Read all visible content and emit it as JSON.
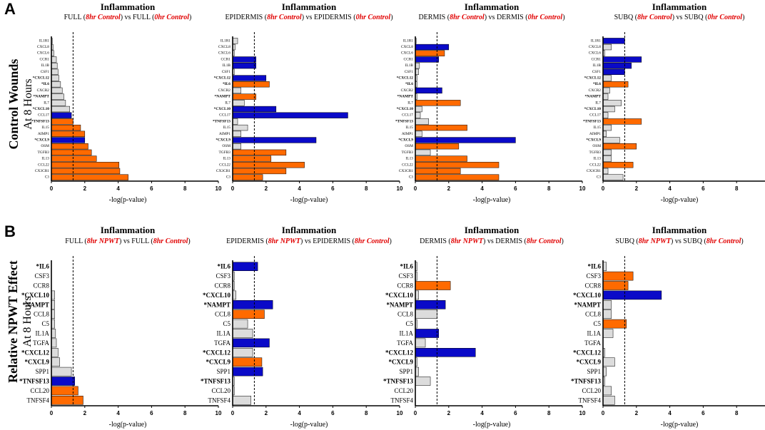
{
  "panels": [
    {
      "letter": "A",
      "row_label_1": "Control Wounds",
      "row_label_2": "At 8 Hours"
    },
    {
      "letter": "B",
      "row_label_1": "Relative NPWT Effect",
      "row_label_2": "At 8 Hours"
    }
  ],
  "colors": {
    "blue": "#0a0ac8",
    "orange": "#ff6a00",
    "grey": "#dcdcdc",
    "red": "#e10000"
  },
  "chart_data": [
    {
      "type": "bar",
      "orientation": "horizontal",
      "title": "Inflammation",
      "subtitle": [
        {
          "t": "FULL ("
        },
        {
          "t": "8hr Control",
          "red": true
        },
        {
          "t": ") vs FULL ("
        },
        {
          "t": "0hr Control",
          "red": true
        },
        {
          "t": ")"
        }
      ],
      "xlabel": "-log(p-value)",
      "xlim": [
        0,
        10
      ],
      "xticks": [
        0,
        2,
        4,
        6,
        8,
        10
      ],
      "threshold": 1.3,
      "categories": [
        "IL1R1",
        "CXCL8",
        "CXCL6",
        "CCR1",
        "IL1B",
        "CSF1",
        "*CXCL12",
        "*IL6",
        "CXCR2",
        "*NAMPT",
        "IL7",
        "*CXCL10",
        "CCL17",
        "*TNFSF13",
        "IL15",
        "AIMP1",
        "*CXCL9",
        "OSM",
        "TGFB3",
        "IL13",
        "CCL22",
        "CX3CR1",
        "C3"
      ],
      "values": [
        0.05,
        0.1,
        0.15,
        0.3,
        0.35,
        0.4,
        0.45,
        0.55,
        0.65,
        0.75,
        0.85,
        1.1,
        1.2,
        1.3,
        1.75,
        2.0,
        2.0,
        2.2,
        2.4,
        2.7,
        4.05,
        4.1,
        4.6
      ],
      "colors": [
        "g",
        "g",
        "g",
        "g",
        "g",
        "g",
        "g",
        "g",
        "g",
        "g",
        "g",
        "g",
        "b",
        "o",
        "o",
        "o",
        "b",
        "o",
        "o",
        "o",
        "o",
        "o",
        "o"
      ]
    },
    {
      "type": "bar",
      "orientation": "horizontal",
      "title": "Inflammation",
      "subtitle": [
        {
          "t": "EPIDERMIS ("
        },
        {
          "t": "8hr Control",
          "red": true
        },
        {
          "t": ") vs EPIDERMIS ("
        },
        {
          "t": "0hr Control",
          "red": true
        },
        {
          "t": ")"
        }
      ],
      "xlabel": "-log(p-value)",
      "xlim": [
        0,
        10
      ],
      "xticks": [
        0,
        2,
        4,
        6,
        8,
        10
      ],
      "threshold": 1.3,
      "categories": [
        "IL1R1",
        "CXCL8",
        "CXCL6",
        "CCR1",
        "IL1B",
        "CSF1",
        "*CXCL12",
        "*IL6",
        "CXCR2",
        "*NAMPT",
        "IL7",
        "*CXCL10",
        "CCL17",
        "*TNFSF13",
        "IL15",
        "AIMP1",
        "*CXCL9",
        "OSM",
        "TGFB3",
        "IL13",
        "CCL22",
        "CX3CR1",
        "C3"
      ],
      "values": [
        0.3,
        0.15,
        0.1,
        1.4,
        1.4,
        0.1,
        2.0,
        2.2,
        0.5,
        1.4,
        0.7,
        2.6,
        6.9,
        0.3,
        0.9,
        0.5,
        5.0,
        0.5,
        3.2,
        2.3,
        4.3,
        3.2,
        1.8
      ],
      "colors": [
        "g",
        "g",
        "g",
        "b",
        "b",
        "g",
        "b",
        "o",
        "g",
        "o",
        "g",
        "b",
        "b",
        "g",
        "g",
        "g",
        "b",
        "g",
        "o",
        "o",
        "o",
        "o",
        "o"
      ]
    },
    {
      "type": "bar",
      "orientation": "horizontal",
      "title": "Inflammation",
      "subtitle": [
        {
          "t": "DERMIS ("
        },
        {
          "t": "8hr Control",
          "red": true
        },
        {
          "t": ") vs DERMIS ("
        },
        {
          "t": "0hr Control",
          "red": true
        },
        {
          "t": ")"
        }
      ],
      "xlabel": "-log(p-value)",
      "xlim": [
        0,
        10
      ],
      "xticks": [
        0,
        2,
        4,
        6,
        8,
        10
      ],
      "threshold": 1.3,
      "categories": [
        "IL1R1",
        "CXCL8",
        "CXCL6",
        "CCR1",
        "IL1B",
        "CSF1",
        "*CXCL12",
        "*IL6",
        "CXCR2",
        "*NAMPT",
        "IL7",
        "*CXCL10",
        "CCL17",
        "*TNFSF13",
        "IL15",
        "AIMP1",
        "*CXCL9",
        "OSM",
        "TGFB3",
        "IL13",
        "CCL22",
        "CX3CR1",
        "C3"
      ],
      "values": [
        0.05,
        2.0,
        1.75,
        1.4,
        0.25,
        0.2,
        0.1,
        0.1,
        1.6,
        0.1,
        2.7,
        0.4,
        0.3,
        0.8,
        3.1,
        0.4,
        6.0,
        2.6,
        0.9,
        3.1,
        5.0,
        2.7,
        5.0
      ],
      "colors": [
        "g",
        "b",
        "o",
        "b",
        "g",
        "g",
        "g",
        "g",
        "b",
        "g",
        "o",
        "g",
        "g",
        "g",
        "o",
        "g",
        "b",
        "o",
        "g",
        "o",
        "o",
        "o",
        "o"
      ]
    },
    {
      "type": "bar",
      "orientation": "horizontal",
      "title": "Inflammation",
      "subtitle": [
        {
          "t": "SUBQ ("
        },
        {
          "t": "8hr Control",
          "red": true
        },
        {
          "t": ") vs SUBQ ("
        },
        {
          "t": "0hr Control",
          "red": true
        },
        {
          "t": ")"
        }
      ],
      "xlabel": "-log(p-value)",
      "xlim": [
        0,
        10
      ],
      "xticks": [
        0,
        2,
        4,
        6,
        8,
        10
      ],
      "threshold": 1.3,
      "categories": [
        "IL1R1",
        "CXCL8",
        "CXCL6",
        "CCR1",
        "IL1B",
        "CSF1",
        "*CXCL12",
        "*IL6",
        "CXCR2",
        "*NAMPT",
        "IL7",
        "*CXCL10",
        "CCL17",
        "*TNFSF13",
        "IL15",
        "AIMP1",
        "*CXCL9",
        "OSM",
        "TGFB3",
        "IL13",
        "CCL22",
        "CX3CR1",
        "C3"
      ],
      "values": [
        1.3,
        0.5,
        0.1,
        2.3,
        1.7,
        1.3,
        0.5,
        1.5,
        0.4,
        0.3,
        1.1,
        0.7,
        0.3,
        2.3,
        0.5,
        0.2,
        1.0,
        2.0,
        0.5,
        0.5,
        1.8,
        0.3,
        1.2
      ],
      "colors": [
        "b",
        "g",
        "g",
        "b",
        "b",
        "b",
        "g",
        "o",
        "g",
        "g",
        "g",
        "g",
        "g",
        "o",
        "g",
        "g",
        "g",
        "o",
        "g",
        "g",
        "o",
        "g",
        "g"
      ]
    },
    {
      "type": "bar",
      "orientation": "horizontal",
      "title": "Inflammation",
      "subtitle": [
        {
          "t": "FULL ("
        },
        {
          "t": "8hr NPWT",
          "red": true
        },
        {
          "t": ") vs FULL ("
        },
        {
          "t": "8hr Control",
          "red": true
        },
        {
          "t": ")"
        }
      ],
      "xlabel": "-log(p-value)",
      "xlim": [
        0,
        10
      ],
      "xticks": [
        0,
        2,
        4,
        6,
        8,
        10
      ],
      "threshold": 1.3,
      "categories": [
        "*IL6",
        "CSF3",
        "CCR8",
        "*CXCL10",
        "*NAMPT",
        "CCL8",
        "C5",
        "IL1A",
        "TGFA",
        "*CXCL12",
        "*CXCL9",
        "SPP1",
        "*TNFSF13",
        "CCL20",
        "TNFSF4"
      ],
      "values": [
        0,
        0,
        0,
        0.2,
        0.2,
        0.2,
        0.2,
        0.25,
        0.3,
        0.4,
        0.5,
        1.2,
        1.4,
        1.6,
        1.9
      ],
      "colors": [
        "g",
        "g",
        "g",
        "g",
        "g",
        "g",
        "g",
        "g",
        "g",
        "g",
        "g",
        "g",
        "b",
        "o",
        "o"
      ]
    },
    {
      "type": "bar",
      "orientation": "horizontal",
      "title": "Inflammation",
      "subtitle": [
        {
          "t": "EPIDERMIS ("
        },
        {
          "t": "8hr NPWT",
          "red": true
        },
        {
          "t": ") vs EPIDERMIS ("
        },
        {
          "t": "8hr Control",
          "red": true
        },
        {
          "t": ")"
        }
      ],
      "xlabel": "-log(p-value)",
      "xlim": [
        0,
        10
      ],
      "xticks": [
        0,
        2,
        4,
        6,
        8,
        10
      ],
      "threshold": 1.3,
      "categories": [
        "*IL6",
        "CSF3",
        "CCR8",
        "*CXCL10",
        "*NAMPT",
        "CCL8",
        "C5",
        "IL1A",
        "TGFA",
        "*CXCL12",
        "*CXCL9",
        "SPP1",
        "*TNFSF13",
        "CCL20",
        "TNFSF4"
      ],
      "values": [
        1.5,
        0.1,
        0.1,
        0.2,
        2.4,
        1.9,
        0.9,
        1.2,
        2.2,
        1.2,
        1.75,
        1.8,
        0.1,
        0.1,
        1.1
      ],
      "colors": [
        "b",
        "g",
        "g",
        "g",
        "b",
        "o",
        "g",
        "g",
        "b",
        "g",
        "o",
        "b",
        "g",
        "g",
        "g"
      ]
    },
    {
      "type": "bar",
      "orientation": "horizontal",
      "title": "Inflammation",
      "subtitle": [
        {
          "t": "DERMIS ("
        },
        {
          "t": "8hr NPWT",
          "red": true
        },
        {
          "t": ") vs DERMIS ("
        },
        {
          "t": "8hr Control",
          "red": true
        },
        {
          "t": ")"
        }
      ],
      "xlabel": "-log(p-value)",
      "xlim": [
        0,
        10
      ],
      "xticks": [
        0,
        2,
        4,
        6,
        8,
        10
      ],
      "threshold": 1.3,
      "categories": [
        "*IL6",
        "CSF3",
        "CCR8",
        "*CXCL10",
        "*NAMPT",
        "CCL8",
        "C5",
        "IL1A",
        "TGFA",
        "*CXCL12",
        "*CXCL9",
        "SPP1",
        "*TNFSF13",
        "CCL20",
        "TNFSF4"
      ],
      "values": [
        0.1,
        0.1,
        2.1,
        0.2,
        1.8,
        1.3,
        0.1,
        1.4,
        0.6,
        3.6,
        0.1,
        0.2,
        0.9,
        0,
        0
      ],
      "colors": [
        "g",
        "g",
        "o",
        "g",
        "b",
        "g",
        "g",
        "b",
        "g",
        "b",
        "g",
        "g",
        "g",
        "g",
        "g"
      ]
    },
    {
      "type": "bar",
      "orientation": "horizontal",
      "title": "Inflammation",
      "subtitle": [
        {
          "t": "SUBQ ("
        },
        {
          "t": "8hr NPWT",
          "red": true
        },
        {
          "t": ") vs SUBQ ("
        },
        {
          "t": "8hr Control",
          "red": true
        },
        {
          "t": ")"
        }
      ],
      "xlabel": "-log(p-value)",
      "xlim": [
        0,
        10
      ],
      "xticks": [
        0,
        2,
        4,
        6,
        8,
        10
      ],
      "threshold": 1.3,
      "categories": [
        "*IL6",
        "CSF3",
        "CCR8",
        "*CXCL10",
        "*NAMPT",
        "CCL8",
        "C5",
        "IL1A",
        "TGFA",
        "*CXCL12",
        "*CXCL9",
        "SPP1",
        "*TNFSF13",
        "CCL20",
        "TNFSF4"
      ],
      "values": [
        0.2,
        1.8,
        1.5,
        3.5,
        0.5,
        0.5,
        1.4,
        0.6,
        0,
        0.1,
        0.7,
        0.2,
        0.1,
        0.5,
        0.7
      ],
      "colors": [
        "g",
        "o",
        "o",
        "b",
        "g",
        "g",
        "o",
        "g",
        "g",
        "g",
        "g",
        "g",
        "g",
        "g",
        "g"
      ]
    }
  ]
}
